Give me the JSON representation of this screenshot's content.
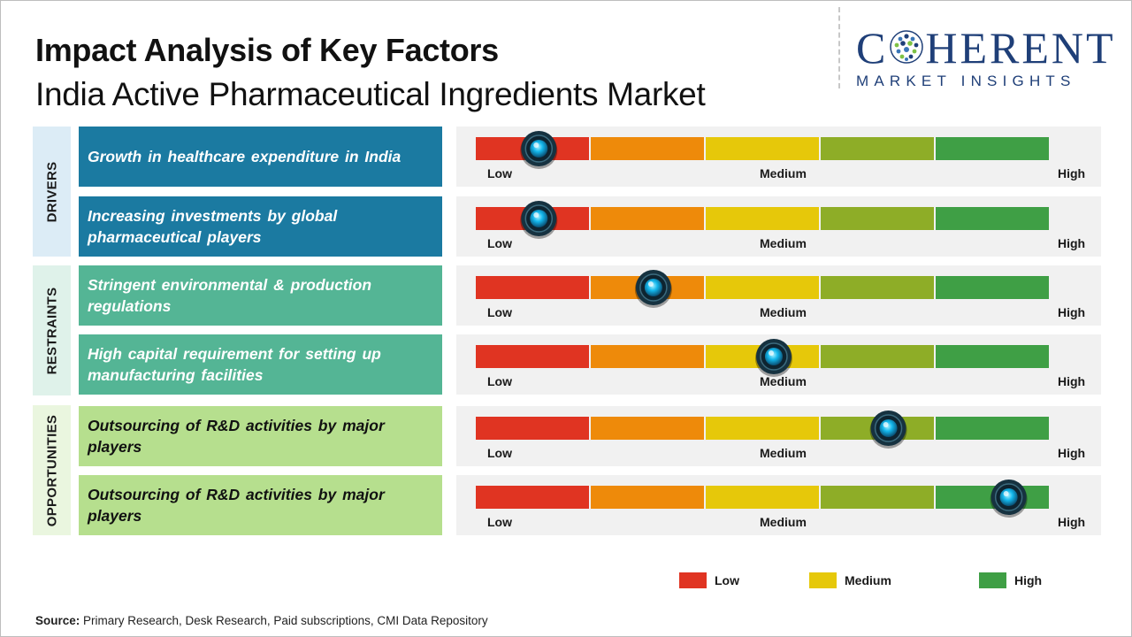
{
  "title": "Impact Analysis of Key Factors",
  "subtitle": "India Active Pharmaceutical Ingredients Market",
  "logo": {
    "main_before": "C",
    "main_after": "HERENT",
    "tagline": "MARKET INSIGHTS"
  },
  "categories": {
    "drivers": "DRIVERS",
    "restraints": "RESTRAINTS",
    "opportunities": "OPPORTUNITIES"
  },
  "scale_labels": {
    "low": "Low",
    "medium": "Medium",
    "high": "High"
  },
  "colors": {
    "seg1": "#e03422",
    "seg2": "#ee8a0a",
    "seg3": "#e6c80a",
    "seg4": "#8ead27",
    "seg5": "#3f9f45",
    "knob": "#13b7ec"
  },
  "chart_data": {
    "type": "table",
    "scale": [
      "Low",
      "Medium",
      "High"
    ],
    "impact_range": [
      0,
      1
    ],
    "factors": [
      {
        "category": "DRIVERS",
        "label": "Growth in healthcare expenditure in India",
        "impact": 0.11
      },
      {
        "category": "DRIVERS",
        "label": "Increasing investments by global pharmaceutical players",
        "impact": 0.11
      },
      {
        "category": "RESTRAINTS",
        "label": "Stringent environmental & production regulations",
        "impact": 0.31
      },
      {
        "category": "RESTRAINTS",
        "label": "High capital requirement for setting up manufacturing facilities",
        "impact": 0.52
      },
      {
        "category": "OPPORTUNITIES",
        "label": "Outsourcing of R&D activities by major players",
        "impact": 0.72
      },
      {
        "category": "OPPORTUNITIES",
        "label": "Outsourcing of R&D activities by major players",
        "impact": 0.93
      }
    ],
    "legend": [
      "Low",
      "Medium",
      "High"
    ],
    "legend_position": "bottom-right"
  },
  "source": {
    "label": "Source:",
    "text": " Primary Research, Desk Research, Paid subscriptions, CMI Data Repository"
  }
}
